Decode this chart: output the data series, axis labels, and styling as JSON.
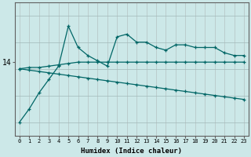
{
  "xlabel": "Humidex (Indice chaleur)",
  "bg_color": "#cce8e8",
  "line_color": "#006666",
  "vgrid_color": "#b8c8c8",
  "hgrid_color": "#a0b8b8",
  "x_values": [
    0,
    1,
    2,
    3,
    4,
    5,
    6,
    7,
    8,
    9,
    10,
    11,
    12,
    13,
    14,
    15,
    16,
    17,
    18,
    19,
    20,
    21,
    22,
    23
  ],
  "line1_y": [
    14.0,
    14.05,
    14.05,
    14.1,
    14.15,
    14.2,
    14.25,
    14.25,
    14.25,
    14.25,
    14.25,
    14.25,
    14.25,
    14.25,
    14.25,
    14.25,
    14.25,
    14.25,
    14.25,
    14.25,
    14.25,
    14.25,
    14.25,
    14.25
  ],
  "line2_y": [
    14.0,
    13.95,
    13.9,
    13.85,
    13.8,
    13.75,
    13.7,
    13.65,
    13.6,
    13.55,
    13.5,
    13.45,
    13.4,
    13.35,
    13.3,
    13.25,
    13.2,
    13.15,
    13.1,
    13.05,
    13.0,
    12.95,
    12.9,
    12.85
  ],
  "line3_y": [
    12.0,
    12.5,
    13.1,
    13.6,
    14.1,
    15.6,
    14.8,
    14.5,
    14.3,
    14.1,
    15.2,
    15.3,
    15.0,
    15.0,
    14.8,
    14.7,
    14.9,
    14.9,
    14.8,
    14.8,
    14.8,
    14.6,
    14.5,
    14.5
  ],
  "ytick_label": "14",
  "ytick_value": 14.25,
  "ylim": [
    11.5,
    16.5
  ],
  "xlim": [
    -0.5,
    23.5
  ],
  "font_family": "monospace"
}
